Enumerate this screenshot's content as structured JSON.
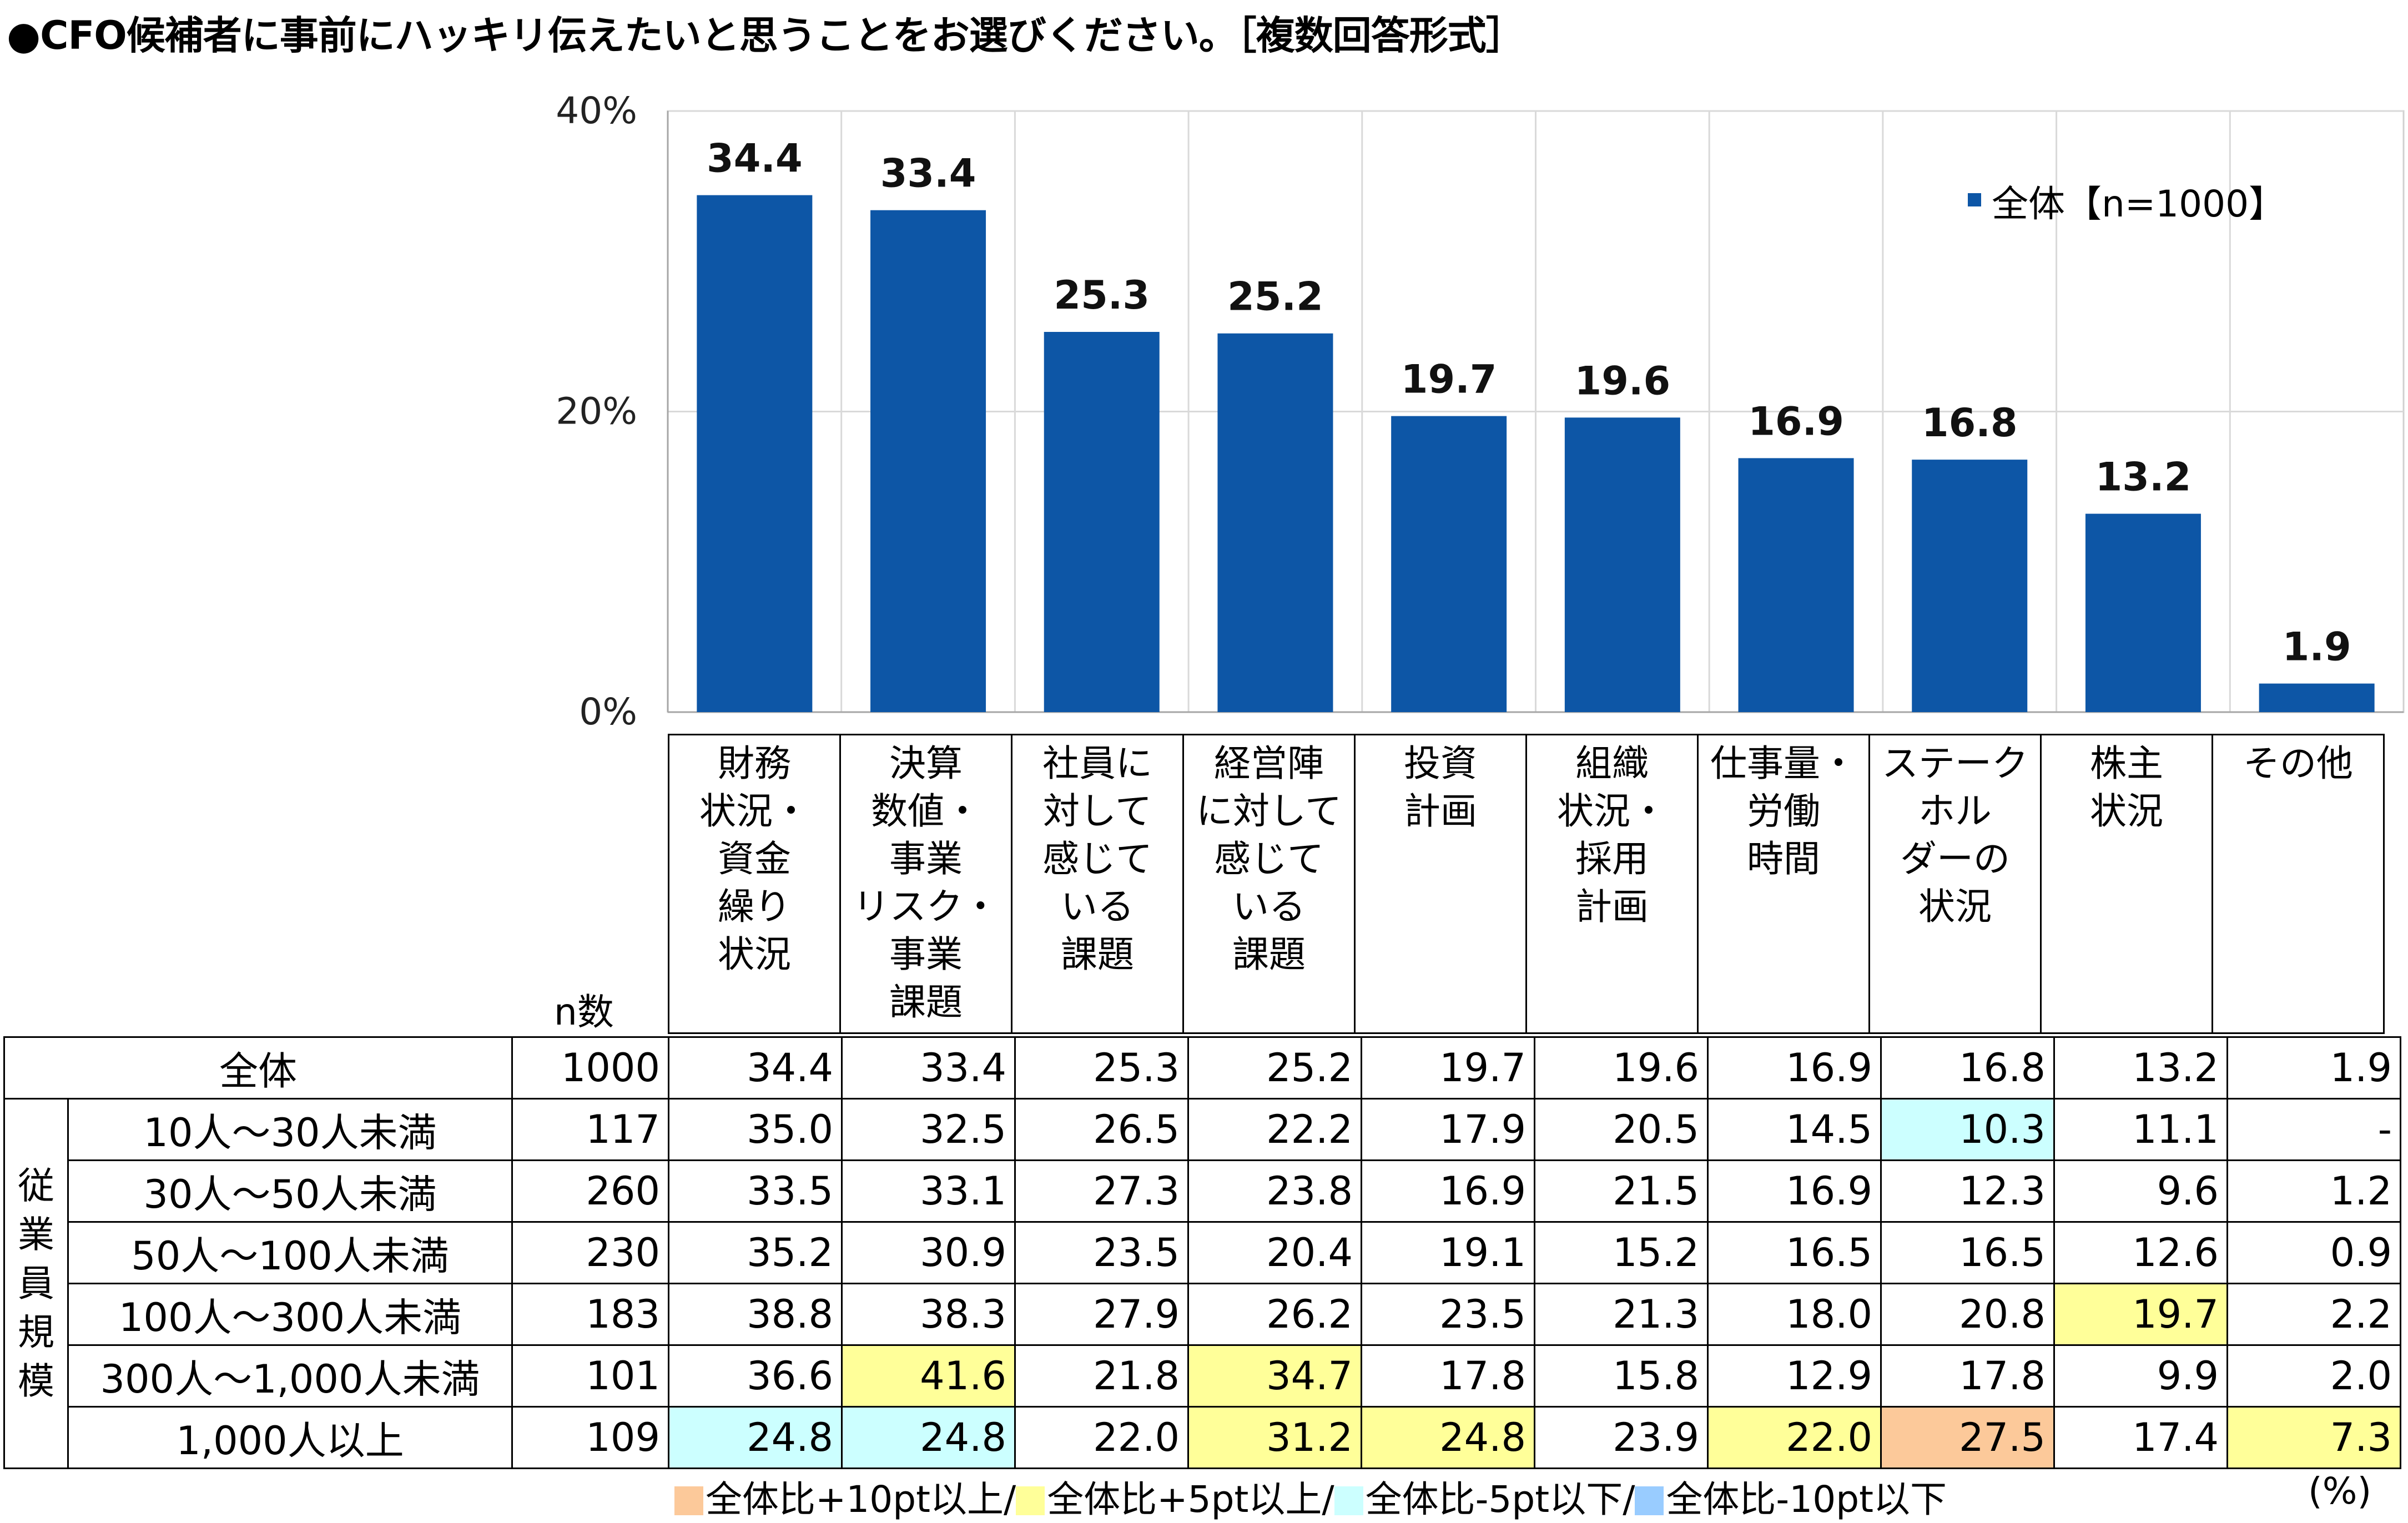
{
  "title": "●CFO候補者に事前にハッキリ伝えたいと思うことをお選びください。［複数回答形式］",
  "colors": {
    "bar": "#0D56A6",
    "plus10": "#FCC99A",
    "plus5": "#FFFF99",
    "minus5": "#CCFFFF",
    "minus10": "#99CCFF"
  },
  "chart_data": {
    "type": "bar",
    "categories": [
      "財務状況・資金繰り状況",
      "決算数値・事業リスク・事業課題",
      "社員に対して感じている課題",
      "経営陣に対して感じている課題",
      "投資計画",
      "組織状況・採用計画",
      "仕事量・労働時間",
      "ステークホルダーの状況",
      "株主状況",
      "その他"
    ],
    "category_lines": [
      [
        "財務",
        "状況・",
        "資金",
        "繰り",
        "状況"
      ],
      [
        "決算",
        "数値・",
        "事業",
        "リスク・",
        "事業",
        "課題"
      ],
      [
        "社員に",
        "対して",
        "感じて",
        "いる",
        "課題"
      ],
      [
        "経営陣",
        "に対して",
        "感じて",
        "いる",
        "課題"
      ],
      [
        "投資",
        "計画"
      ],
      [
        "組織",
        "状況・",
        "採用",
        "計画"
      ],
      [
        "仕事量・",
        "労働",
        "時間"
      ],
      [
        "ステーク",
        "ホル",
        "ダーの",
        "状況"
      ],
      [
        "株主",
        "状況"
      ],
      [
        "その他"
      ]
    ],
    "series": [
      {
        "name": "全体【n=1000】",
        "values": [
          34.4,
          33.4,
          25.3,
          25.2,
          19.7,
          19.6,
          16.9,
          16.8,
          13.2,
          1.9
        ]
      }
    ],
    "value_labels": [
      "34.4",
      "33.4",
      "25.3",
      "25.2",
      "19.7",
      "19.6",
      "16.9",
      "16.8",
      "13.2",
      "1.9"
    ],
    "ylim": [
      0,
      40
    ],
    "yticks": [
      0,
      20,
      40
    ],
    "ytick_labels": [
      "0%",
      "20%",
      "40%"
    ],
    "grid": true,
    "legend": "top-right"
  },
  "table": {
    "n_header": "n数",
    "group_label": [
      "従",
      "業",
      "員",
      "規",
      "模"
    ],
    "rows": [
      {
        "label": "全体",
        "n": "1000",
        "values": [
          "34.4",
          "33.4",
          "25.3",
          "25.2",
          "19.7",
          "19.6",
          "16.9",
          "16.8",
          "13.2",
          "1.9"
        ],
        "highlights": [
          "",
          "",
          "",
          "",
          "",
          "",
          "",
          "",
          "",
          ""
        ]
      },
      {
        "label": "10人～30人未満",
        "n": "117",
        "values": [
          "35.0",
          "32.5",
          "26.5",
          "22.2",
          "17.9",
          "20.5",
          "14.5",
          "10.3",
          "11.1",
          "-"
        ],
        "highlights": [
          "",
          "",
          "",
          "",
          "",
          "",
          "",
          "minus5",
          "",
          ""
        ]
      },
      {
        "label": "30人～50人未満",
        "n": "260",
        "values": [
          "33.5",
          "33.1",
          "27.3",
          "23.8",
          "16.9",
          "21.5",
          "16.9",
          "12.3",
          "9.6",
          "1.2"
        ],
        "highlights": [
          "",
          "",
          "",
          "",
          "",
          "",
          "",
          "",
          "",
          ""
        ]
      },
      {
        "label": "50人～100人未満",
        "n": "230",
        "values": [
          "35.2",
          "30.9",
          "23.5",
          "20.4",
          "19.1",
          "15.2",
          "16.5",
          "16.5",
          "12.6",
          "0.9"
        ],
        "highlights": [
          "",
          "",
          "",
          "",
          "",
          "",
          "",
          "",
          "",
          ""
        ]
      },
      {
        "label": "100人～300人未満",
        "n": "183",
        "values": [
          "38.8",
          "38.3",
          "27.9",
          "26.2",
          "23.5",
          "21.3",
          "18.0",
          "20.8",
          "19.7",
          "2.2"
        ],
        "highlights": [
          "",
          "",
          "",
          "",
          "",
          "",
          "",
          "",
          "plus5",
          ""
        ]
      },
      {
        "label": "300人～1,000人未満",
        "n": "101",
        "values": [
          "36.6",
          "41.6",
          "21.8",
          "34.7",
          "17.8",
          "15.8",
          "12.9",
          "17.8",
          "9.9",
          "2.0"
        ],
        "highlights": [
          "",
          "plus5",
          "",
          "plus5",
          "",
          "",
          "",
          "",
          "",
          ""
        ]
      },
      {
        "label": "1,000人以上",
        "n": "109",
        "values": [
          "24.8",
          "24.8",
          "22.0",
          "31.2",
          "24.8",
          "23.9",
          "22.0",
          "27.5",
          "17.4",
          "7.3"
        ],
        "highlights": [
          "minus5",
          "minus5",
          "",
          "plus5",
          "plus5",
          "",
          "plus5",
          "plus10",
          "",
          "plus5"
        ]
      }
    ]
  },
  "bottom_legend": [
    {
      "key": "plus10",
      "text": "全体比+10pt以上/"
    },
    {
      "key": "plus5",
      "text": "全体比+5pt以上/"
    },
    {
      "key": "minus5",
      "text": "全体比-5pt以下/"
    },
    {
      "key": "minus10",
      "text": "全体比-10pt以下"
    }
  ],
  "unit": "(%)"
}
